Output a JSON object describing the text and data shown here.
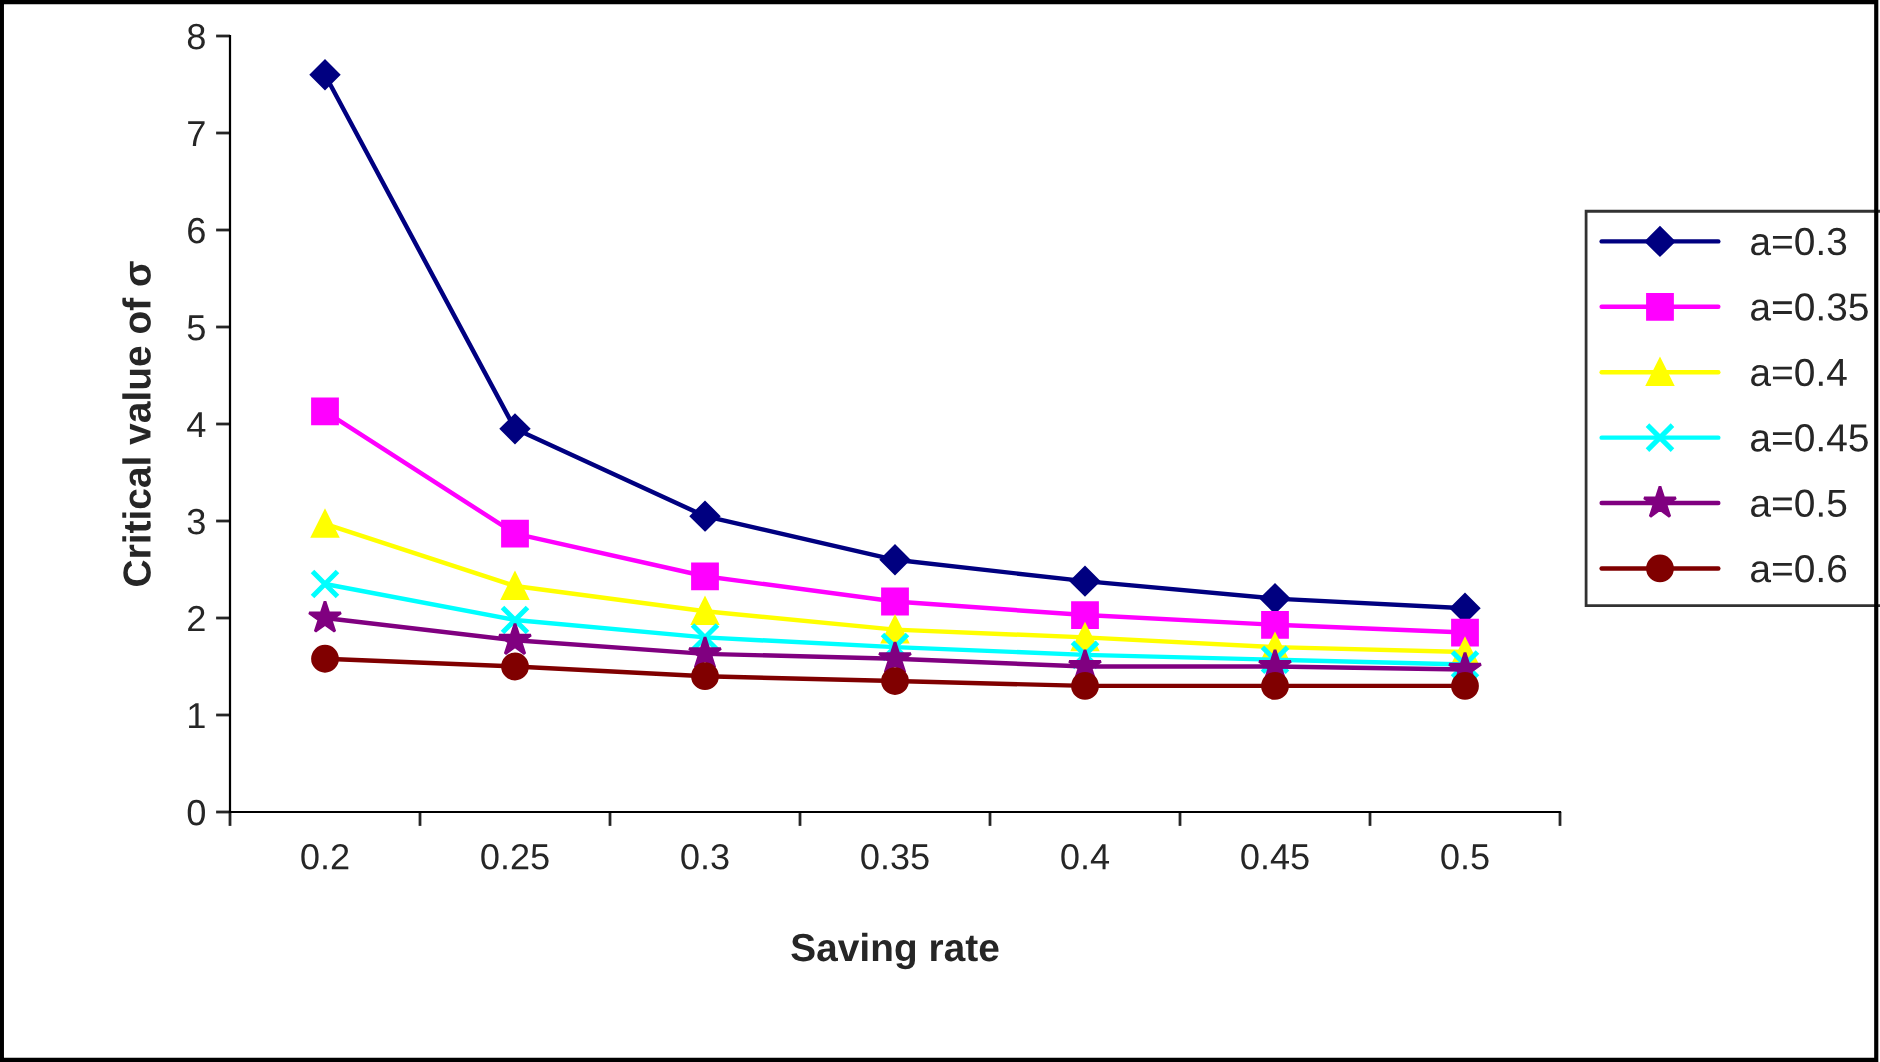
{
  "chart_data": {
    "type": "line",
    "xlabel": "Saving rate",
    "ylabel": "Critical value of σ",
    "categories": [
      "0.2",
      "0.25",
      "0.3",
      "0.35",
      "0.4",
      "0.45",
      "0.5"
    ],
    "ylim": [
      0,
      8
    ],
    "yticks": [
      0,
      1,
      2,
      3,
      4,
      5,
      6,
      7,
      8
    ],
    "grid": false,
    "legend": "right",
    "series": [
      {
        "name": "a=0.3",
        "color": "#000080",
        "marker": "diamond",
        "values": [
          7.6,
          3.95,
          3.05,
          2.6,
          2.38,
          2.2,
          2.1
        ]
      },
      {
        "name": "a=0.35",
        "color": "#ff00ff",
        "marker": "square",
        "values": [
          4.13,
          2.87,
          2.43,
          2.17,
          2.03,
          1.93,
          1.85
        ]
      },
      {
        "name": "a=0.4",
        "color": "#ffff00",
        "marker": "triangle",
        "values": [
          2.97,
          2.33,
          2.07,
          1.88,
          1.8,
          1.7,
          1.65
        ]
      },
      {
        "name": "a=0.45",
        "color": "#00ffff",
        "marker": "cross",
        "values": [
          2.35,
          1.98,
          1.8,
          1.7,
          1.62,
          1.57,
          1.52
        ]
      },
      {
        "name": "a=0.5",
        "color": "#800080",
        "marker": "star",
        "values": [
          2.0,
          1.77,
          1.63,
          1.58,
          1.5,
          1.5,
          1.47
        ]
      },
      {
        "name": "a=0.6",
        "color": "#800000",
        "marker": "circle",
        "values": [
          1.58,
          1.5,
          1.4,
          1.35,
          1.3,
          1.3,
          1.3
        ]
      }
    ]
  }
}
